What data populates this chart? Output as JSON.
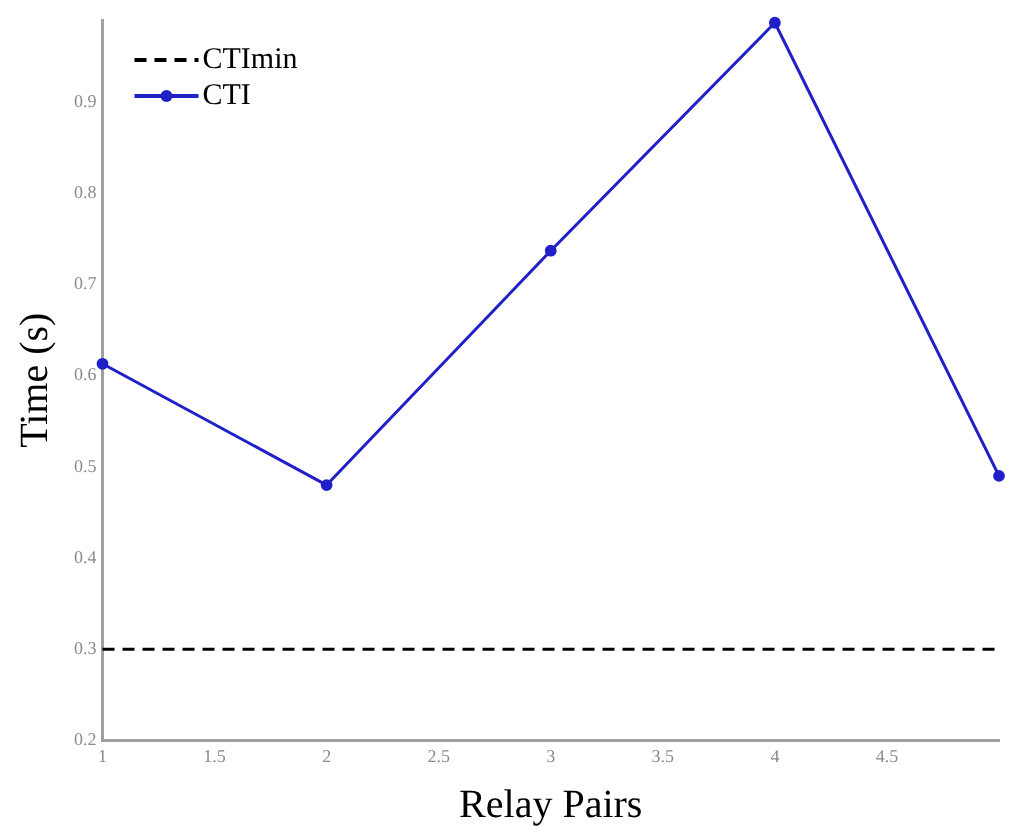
{
  "chart_data": {
    "type": "line",
    "xlabel": "Relay Pairs",
    "ylabel": "Time (s)",
    "xlim": [
      1,
      5
    ],
    "xticks": [
      1,
      1.5,
      2,
      2.5,
      3,
      3.5,
      4,
      4.5
    ],
    "ylim": [
      0.2,
      0.99
    ],
    "yticks": [
      0.2,
      0.3,
      0.4,
      0.5,
      0.6,
      0.7,
      0.8,
      0.9
    ],
    "grid": false,
    "legend": "top left",
    "series": [
      {
        "name": "CTImin",
        "color": "#000000",
        "line_style": "dashed",
        "marker": "none",
        "x": [
          1,
          5
        ],
        "values": [
          0.3,
          0.3
        ]
      },
      {
        "name": "CTI",
        "color": "#2020c8",
        "line_style": "solid",
        "marker": "circle",
        "x": [
          1,
          2,
          3,
          4,
          5
        ],
        "values": [
          0.613,
          0.48,
          0.737,
          0.987,
          0.49
        ]
      }
    ]
  }
}
